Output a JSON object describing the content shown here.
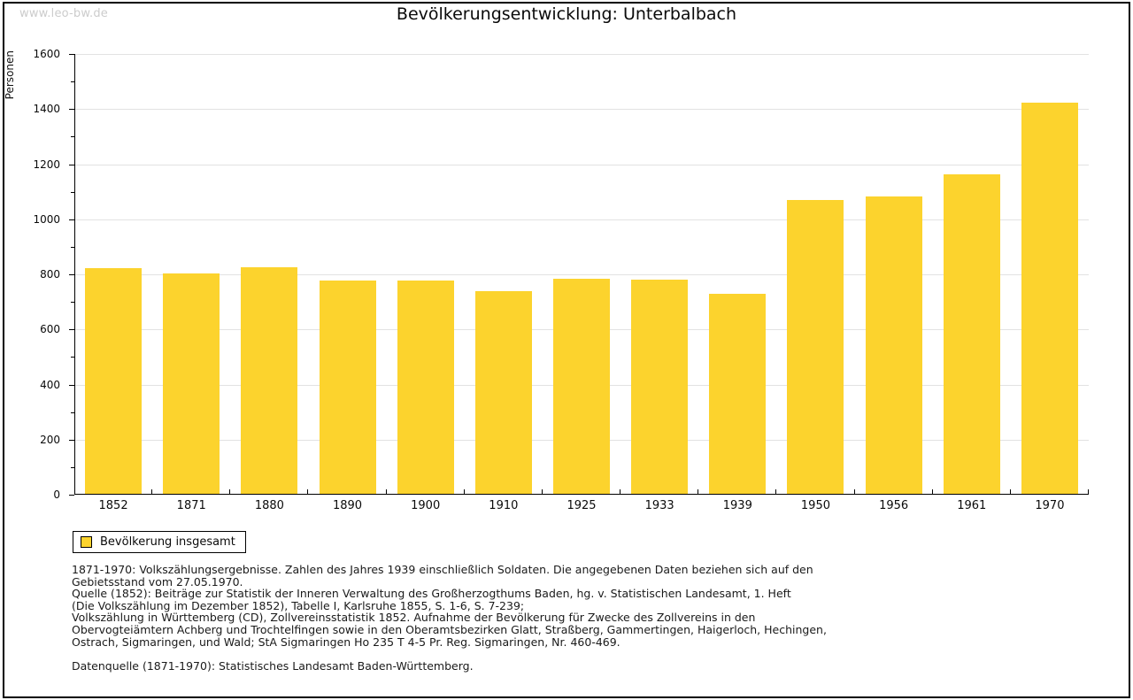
{
  "watermark": "www.leo-bw.de",
  "title": "Bevölkerungsentwicklung: Unterbalbach",
  "chart_data": {
    "type": "bar",
    "title": "Bevölkerungsentwicklung: Unterbalbach",
    "categories": [
      "1852",
      "1871",
      "1880",
      "1890",
      "1900",
      "1910",
      "1925",
      "1933",
      "1939",
      "1950",
      "1956",
      "1961",
      "1970"
    ],
    "values": [
      820,
      800,
      823,
      775,
      775,
      736,
      780,
      777,
      726,
      1068,
      1080,
      1160,
      1421
    ],
    "series_name": "Bevölkerung insgesamt",
    "xlabel": "",
    "ylabel": "Personen",
    "ylim": [
      0,
      1600
    ],
    "ytick_step": 200,
    "yminor_step": 100,
    "grid": true,
    "bar_color": "#fcd32d",
    "legend_position": "bottom-left"
  },
  "legend": {
    "label": "Bevölkerung insgesamt"
  },
  "footnote_lines": [
    "1871-1970: Volkszählungsergebnisse. Zahlen des Jahres 1939 einschließlich Soldaten. Die angegebenen Daten beziehen sich auf den",
    "Gebietsstand vom 27.05.1970.",
    "Quelle (1852): Beiträge zur Statistik der Inneren Verwaltung des Großherzogthums Baden, hg. v. Statistischen Landesamt, 1. Heft",
    "(Die Volkszählung im Dezember 1852), Tabelle I, Karlsruhe 1855, S. 1-6, S. 7-239;",
    "Volkszählung in Württemberg (CD), Zollvereinsstatistik 1852. Aufnahme der Bevölkerung für Zwecke des Zollvereins in den",
    "Obervogteiämtern Achberg und Trochtelfingen sowie in den Oberamtsbezirken Glatt, Straßberg, Gammertingen, Haigerloch, Hechingen,",
    "Ostrach, Sigmaringen, und Wald; StA Sigmaringen Ho 235 T 4-5 Pr. Reg. Sigmaringen, Nr. 460-469.",
    "",
    "Datenquelle (1871-1970): Statistisches Landesamt Baden-Württemberg."
  ]
}
